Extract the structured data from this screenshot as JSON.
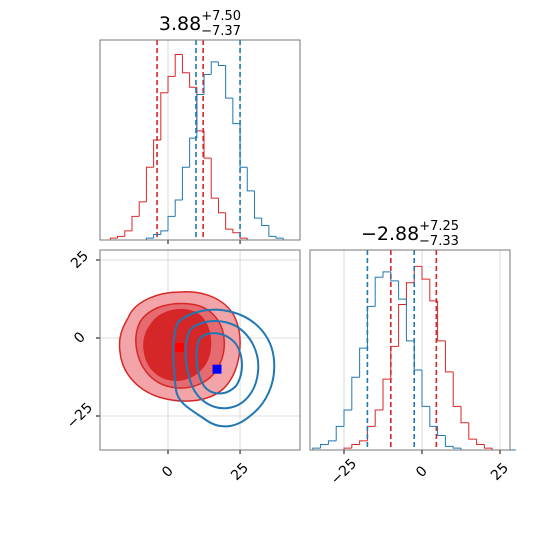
{
  "chart_data": [
    {
      "type": "histogram",
      "title": "3.88",
      "title_plus": "+7.50",
      "title_minus": "−7.37",
      "bins": [
        -20,
        -17.5,
        -15,
        -12.5,
        -10,
        -7.5,
        -5,
        -2.5,
        0,
        2.5,
        5,
        7.5,
        10,
        12.5,
        15,
        17.5,
        20,
        22.5,
        25,
        27.5,
        30,
        32.5,
        35,
        37.5,
        40,
        42.5,
        45
      ],
      "series": [
        {
          "color": "#d62728",
          "values": [
            1,
            2,
            5,
            13,
            21,
            40,
            55,
            81,
            90,
            102,
            92,
            84,
            60,
            45,
            23,
            15,
            6,
            4,
            1,
            0,
            0,
            0,
            0,
            0,
            0,
            0
          ],
          "quantiles": [
            -3.8,
            12.2
          ]
        },
        {
          "color": "#1f77b4",
          "values": [
            0,
            0,
            0,
            0,
            0,
            1,
            3,
            5,
            13,
            22,
            40,
            56,
            80,
            91,
            98,
            96,
            78,
            64,
            40,
            27,
            12,
            8,
            2,
            1,
            0,
            0
          ],
          "quantiles": [
            9.7,
            25
          ]
        }
      ],
      "xlim": [
        -23.6,
        45.8
      ],
      "ylim": [
        0,
        110
      ],
      "xticks": [
        0,
        25
      ],
      "grid": true
    },
    {
      "type": "scatter",
      "series": [
        {
          "color": "#ff0000",
          "x": [
            4
          ],
          "values": [
            -3
          ]
        },
        {
          "color": "#0000ff",
          "x": [
            17
          ],
          "values": [
            -10
          ]
        }
      ],
      "xlim": [
        -23.6,
        45.8
      ],
      "ylim": [
        -35.9,
        28.2
      ],
      "xticks": [
        0,
        25
      ],
      "yticks": [
        {
          "value": -25,
          "label": "−25"
        },
        0,
        25
      ],
      "grid": true
    },
    {
      "type": "histogram",
      "title": "−2.88",
      "title_plus": "+7.25",
      "title_minus": "−7.33",
      "bins": [
        -35,
        -32.5,
        -30,
        -27.5,
        -25,
        -22.5,
        -20,
        -17.5,
        -15,
        -12.5,
        -10,
        -7.5,
        -5,
        -2.5,
        0,
        2.5,
        5,
        7.5,
        10,
        12.5,
        15,
        17.5,
        20,
        22.5,
        25,
        27.5,
        30
      ],
      "series": [
        {
          "color": "#d62728",
          "values": [
            0,
            0,
            0,
            0,
            1,
            3,
            5,
            13,
            22,
            39,
            57,
            80,
            92,
            101,
            94,
            82,
            60,
            43,
            24,
            15,
            6,
            3,
            1,
            0,
            0,
            0
          ],
          "quantiles": [
            -10,
            4.6
          ]
        },
        {
          "color": "#1f77b4",
          "values": [
            1,
            3,
            5,
            13,
            22,
            40,
            56,
            79,
            95,
            98,
            93,
            83,
            60,
            44,
            24,
            13,
            8,
            2,
            1,
            0,
            0,
            0,
            0,
            0,
            0,
            0
          ],
          "quantiles": [
            -17.5,
            -2.5
          ]
        }
      ],
      "xlim": [
        -35.9,
        28.2
      ],
      "ylim": [
        0,
        110
      ],
      "xticks": [
        {
          "value": -25,
          "label": "−25"
        },
        0,
        25
      ],
      "grid": true
    }
  ]
}
